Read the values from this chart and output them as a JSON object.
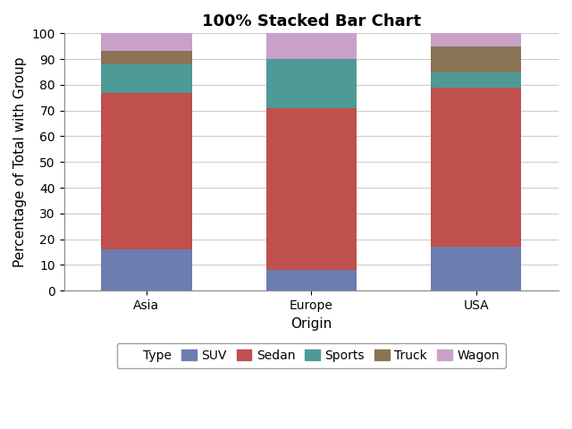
{
  "title": "100% Stacked Bar Chart",
  "xlabel": "Origin",
  "ylabel": "Percentage of Total with Group",
  "categories": [
    "Asia",
    "Europe",
    "USA"
  ],
  "series": {
    "SUV": [
      16,
      8,
      17
    ],
    "Sedan": [
      61,
      63,
      62
    ],
    "Sports": [
      11,
      19,
      6
    ],
    "Truck": [
      5,
      0,
      10
    ],
    "Wagon": [
      7,
      10,
      5
    ]
  },
  "colors": {
    "SUV": "#6d7db0",
    "Sedan": "#c0504d",
    "Sports": "#4e9a97",
    "Truck": "#8b7355",
    "Wagon": "#c8a0c8"
  },
  "ylim": [
    0,
    100
  ],
  "yticks": [
    0,
    10,
    20,
    30,
    40,
    50,
    60,
    70,
    80,
    90,
    100
  ],
  "bar_width": 0.55,
  "background_color": "#ffffff",
  "grid_color": "#cccccc",
  "legend_label": "Type",
  "title_fontsize": 13,
  "axis_fontsize": 11,
  "tick_fontsize": 10,
  "legend_fontsize": 10
}
